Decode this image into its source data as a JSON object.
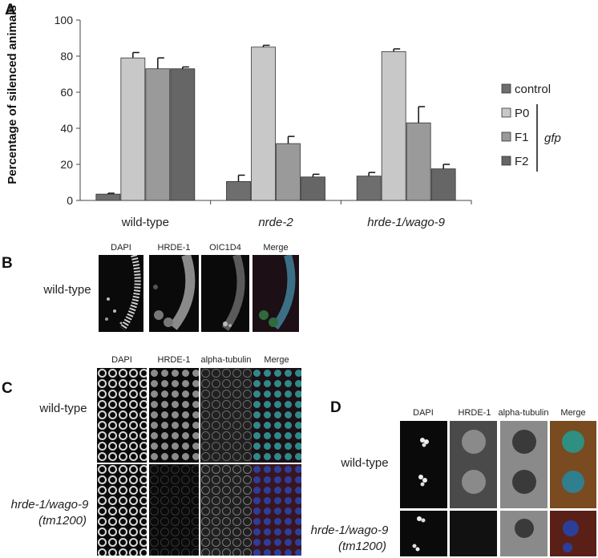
{
  "panels": {
    "a_letter": "A",
    "b_letter": "B",
    "c_letter": "C",
    "d_letter": "D"
  },
  "chart_data": {
    "type": "bar",
    "ylabel": "Percentage of silenced animals",
    "ylim": [
      0,
      100
    ],
    "yticks": [
      "0",
      "20",
      "40",
      "60",
      "80",
      "100"
    ],
    "categories": [
      "wild-type",
      "nrde-2",
      "hrde-1/wago-9"
    ],
    "category_italic": [
      false,
      true,
      true
    ],
    "series": [
      {
        "name": "control",
        "values": [
          3.5,
          10.5,
          13.5
        ],
        "errors": [
          0.5,
          3.5,
          2.0
        ],
        "color": "#6e6e6e"
      },
      {
        "name": "P0",
        "values": [
          79,
          85,
          82.5
        ],
        "errors": [
          3,
          1,
          1.5
        ],
        "color": "#c8c8c8"
      },
      {
        "name": "F1",
        "values": [
          73,
          31.5,
          43
        ],
        "errors": [
          6,
          4,
          9
        ],
        "color": "#9a9a9a"
      },
      {
        "name": "F2",
        "values": [
          73,
          13,
          17.5
        ],
        "errors": [
          1,
          1.5,
          2.5
        ],
        "color": "#666666"
      }
    ],
    "bracket_label": "gfp",
    "legend_placement": "right",
    "grid": false
  },
  "panel_b": {
    "headers": [
      "DAPI",
      "HRDE-1",
      "OIC1D4",
      "Merge"
    ],
    "row_label": "wild-type"
  },
  "panel_c": {
    "headers": [
      "DAPI",
      "HRDE-1",
      "alpha-tubulin",
      "Merge"
    ],
    "row1_label": "wild-type",
    "row2_label_line1": "hrde-1/wago-9",
    "row2_label_line2": "(tm1200)"
  },
  "panel_d": {
    "headers": [
      "DAPI",
      "HRDE-1",
      "alpha-tubulin",
      "Merge"
    ],
    "row1_label": "wild-type",
    "row2_label_line1": "hrde-1/wago-9",
    "row2_label_line2": "(tm1200)"
  }
}
